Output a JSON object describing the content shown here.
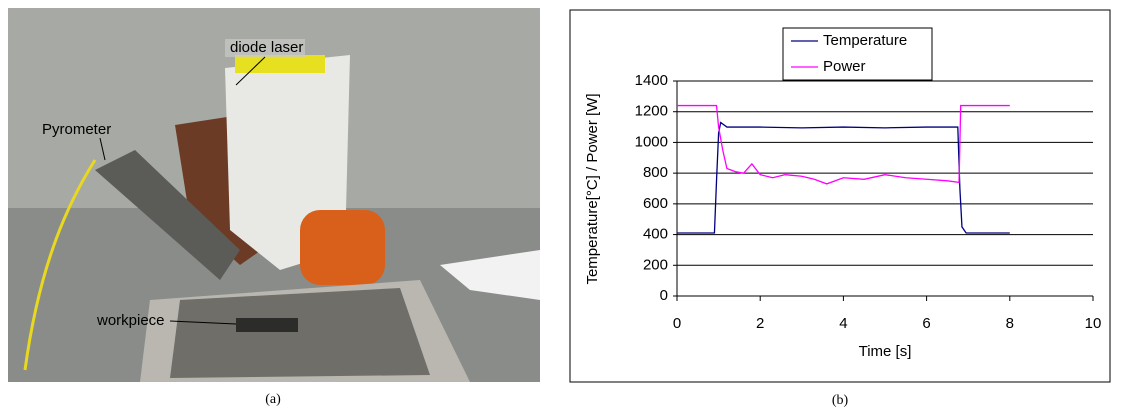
{
  "photo": {
    "labels": [
      "diode laser",
      "Pyrometer",
      "workpiece"
    ],
    "caption": "(a)"
  },
  "chart_data": {
    "type": "line",
    "caption": "(b)",
    "x_label": "Time [s]",
    "y_label": "Temperature[°C] / Power [W]",
    "xlim": [
      0,
      10
    ],
    "xticks": [
      0,
      2,
      4,
      6,
      8,
      10
    ],
    "ylim": [
      0,
      1400
    ],
    "yticks": [
      0,
      200,
      400,
      600,
      800,
      1000,
      1200,
      1400
    ],
    "grid": true,
    "legend": "top",
    "series": [
      {
        "name": "Temperature",
        "color": "#000080",
        "x": [
          0,
          0.9,
          0.95,
          1.0,
          1.05,
          1.2,
          2,
          3,
          4,
          5,
          6,
          6.75,
          6.8,
          6.85,
          6.95,
          8
        ],
        "values": [
          410,
          410,
          750,
          1060,
          1130,
          1100,
          1100,
          1095,
          1100,
          1095,
          1100,
          1100,
          700,
          450,
          410,
          410
        ]
      },
      {
        "name": "Power",
        "color": "#ff00ff",
        "x": [
          0,
          0.95,
          1.0,
          1.1,
          1.2,
          1.4,
          1.6,
          1.8,
          2.0,
          2.3,
          2.6,
          3.0,
          3.3,
          3.6,
          4.0,
          4.5,
          5.0,
          5.5,
          6.0,
          6.5,
          6.78,
          6.82,
          8
        ],
        "values": [
          1240,
          1240,
          1100,
          950,
          830,
          810,
          800,
          860,
          790,
          770,
          790,
          780,
          760,
          730,
          770,
          760,
          790,
          770,
          760,
          750,
          740,
          1240,
          1240
        ]
      }
    ]
  }
}
